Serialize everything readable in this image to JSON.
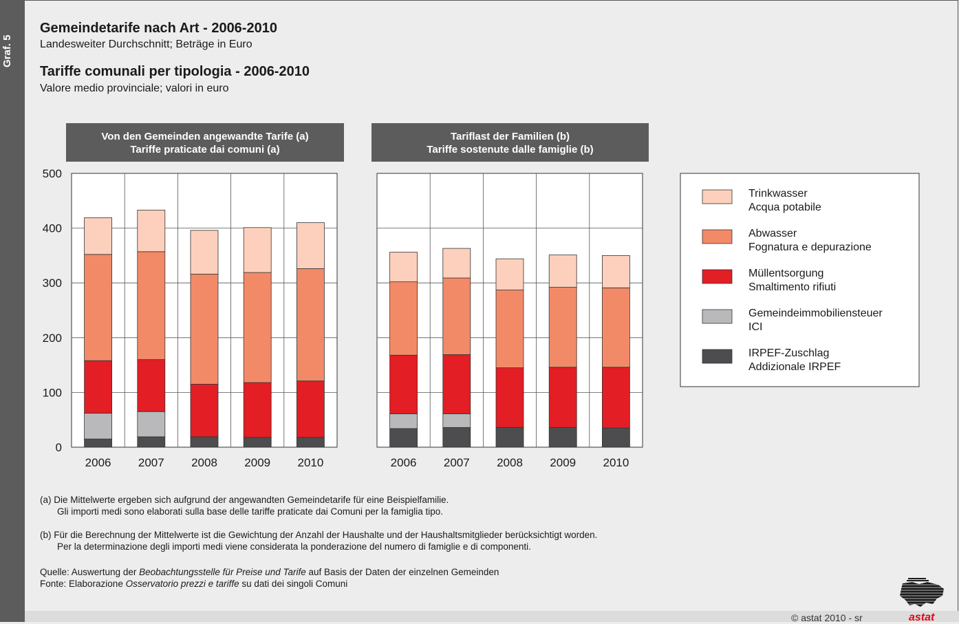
{
  "sidebar": {
    "label": "Graf. 5"
  },
  "header": {
    "title_de": "Gemeindetarife nach Art - 2006-2010",
    "subtitle_de": "Landesweiter Durchschnitt; Beträge in Euro",
    "title_it": "Tariffe comunali per tipologia - 2006-2010",
    "subtitle_it": "Valore medio provinciale; valori in euro"
  },
  "colors": {
    "trinkwasser": "#fcd0bc",
    "abwasser": "#f28a68",
    "muell": "#e31e24",
    "ici": "#b9b9bb",
    "irpef": "#4d4d4f",
    "panel_header": "#5c5c5c"
  },
  "legend": [
    {
      "de": "Trinkwasser",
      "it": "Acqua potabile",
      "color": "#fcd0bc"
    },
    {
      "de": "Abwasser",
      "it": "Fognatura e depurazione",
      "color": "#f28a68"
    },
    {
      "de": "Müllentsorgung",
      "it": "Smaltimento rifiuti",
      "color": "#e31e24"
    },
    {
      "de": "Gemeindeimmobiliensteuer",
      "it": "ICI",
      "color": "#b9b9bb"
    },
    {
      "de": "IRPEF-Zuschlag",
      "it": "Addizionale IRPEF",
      "color": "#4d4d4f"
    }
  ],
  "chart_data": [
    {
      "type": "bar",
      "stacked": true,
      "title": "Von den Gemeinden angewandte Tarife (a)\nTariffe praticate dai comuni (a)",
      "title_line1": "Von den Gemeinden angewandte Tarife (a)",
      "title_line2": "Tariffe praticate dai comuni (a)",
      "categories": [
        "2006",
        "2007",
        "2008",
        "2009",
        "2010"
      ],
      "ylim": [
        0,
        500
      ],
      "yticks": [
        "0",
        "100",
        "200",
        "300",
        "400",
        "500"
      ],
      "grid": true,
      "series": [
        {
          "name": "IRPEF-Zuschlag",
          "values": [
            15,
            19,
            19,
            18,
            18
          ]
        },
        {
          "name": "Gemeindeimmobiliensteuer",
          "values": [
            47,
            46,
            0,
            0,
            0
          ]
        },
        {
          "name": "Müllentsorgung",
          "values": [
            96,
            95,
            96,
            100,
            103
          ]
        },
        {
          "name": "Abwasser",
          "values": [
            194,
            197,
            201,
            201,
            205
          ]
        },
        {
          "name": "Trinkwasser",
          "values": [
            67,
            76,
            80,
            82,
            84
          ]
        }
      ]
    },
    {
      "type": "bar",
      "stacked": true,
      "title": "Tariflast der Familien (b)\nTariffe sostenute dalle famiglie (b)",
      "title_line1": "Tariflast der Familien (b)",
      "title_line2": "Tariffe sostenute dalle famiglie (b)",
      "categories": [
        "2006",
        "2007",
        "2008",
        "2009",
        "2010"
      ],
      "ylim": [
        0,
        500
      ],
      "grid": true,
      "series": [
        {
          "name": "IRPEF-Zuschlag",
          "values": [
            34,
            36,
            36,
            36,
            35
          ]
        },
        {
          "name": "Gemeindeimmobiliensteuer",
          "values": [
            27,
            25,
            0,
            0,
            0
          ]
        },
        {
          "name": "Müllentsorgung",
          "values": [
            107,
            108,
            109,
            110,
            111
          ]
        },
        {
          "name": "Abwasser",
          "values": [
            134,
            140,
            142,
            146,
            145
          ]
        },
        {
          "name": "Trinkwasser",
          "values": [
            54,
            54,
            57,
            59,
            59
          ]
        }
      ]
    }
  ],
  "notes": {
    "a_de": "(a) Die Mittelwerte ergeben sich aufgrund der angewandten Gemeindetarife für eine Beispielfamilie.",
    "a_it": "Gli importi medi sono elaborati sulla base delle tariffe praticate dai Comuni per la famiglia tipo.",
    "b_de": "(b) Für die Berechnung der Mittelwerte ist die Gewichtung der Anzahl der Haushalte und der Haushaltsmitglieder berücksichtigt worden.",
    "b_it": "Per la determinazione degli importi medi viene considerata la ponderazione del numero di famiglie e di componenti.",
    "source_de_pre": "Quelle: Auswertung der ",
    "source_de_em": "Beobachtungsstelle für Preise und Tarife",
    "source_de_post": " auf Basis der Daten der einzelnen Gemeinden",
    "source_it_pre": "Fonte: Elaborazione ",
    "source_it_em": "Osservatorio prezzi e tariffe",
    "source_it_post": " su dati dei singoli Comuni"
  },
  "footer": {
    "copyright": "© astat 2010 - sr",
    "logo_text": "astat"
  }
}
